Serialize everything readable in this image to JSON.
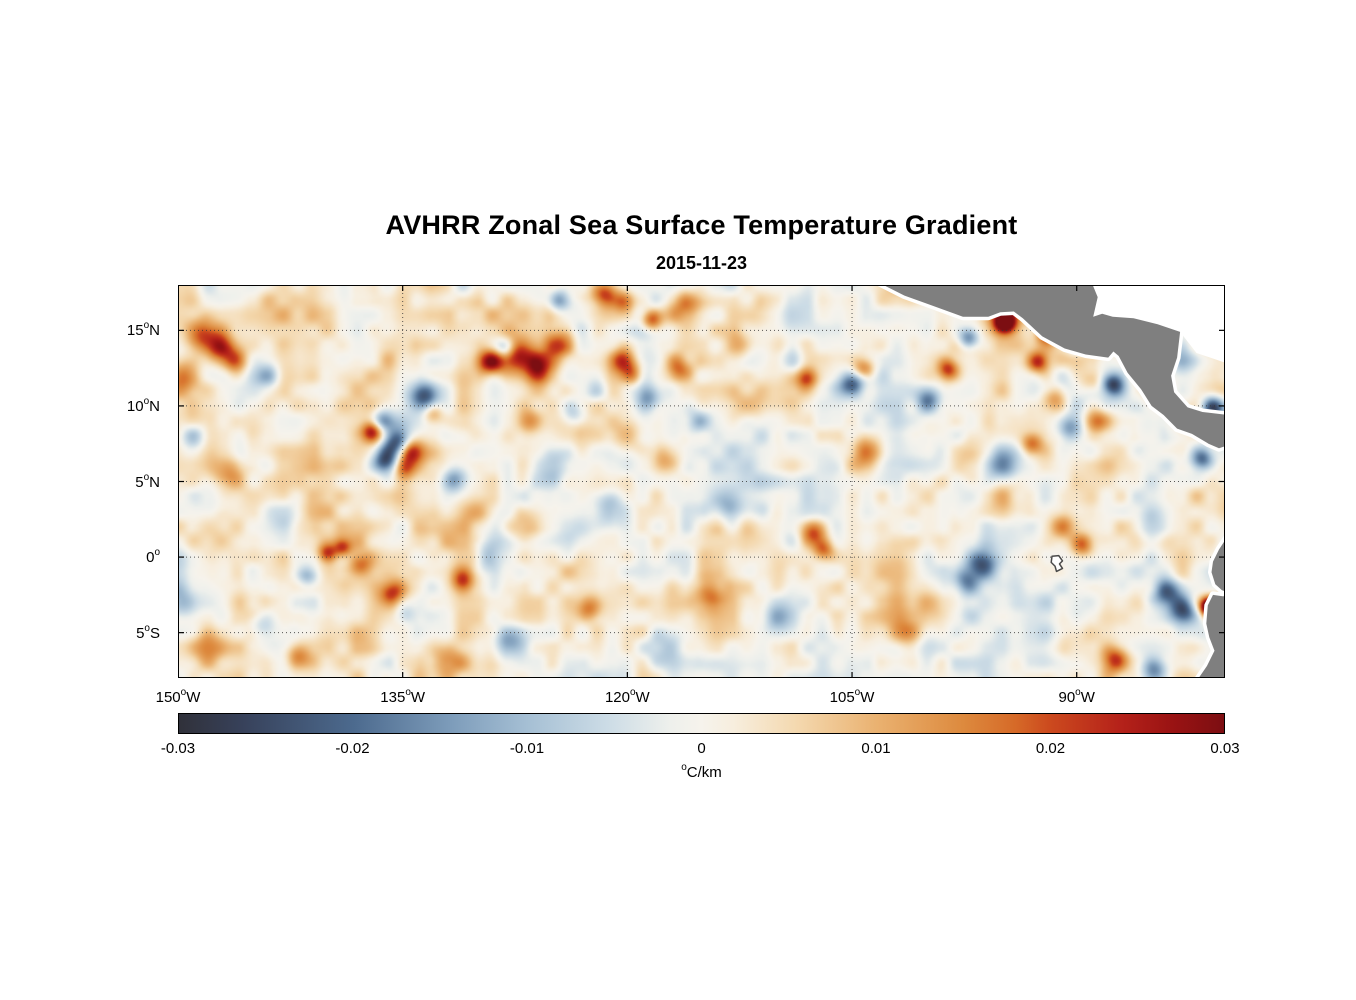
{
  "chart_data": {
    "type": "heatmap",
    "title": "AVHRR Zonal Sea Surface Temperature Gradient",
    "subtitle": "2015-11-23",
    "degree_symbol": "o",
    "x_axis": {
      "range": [
        -150,
        -80.1
      ],
      "ticks": [
        {
          "num": "150",
          "suffix": "W",
          "lon": -150
        },
        {
          "num": "135",
          "suffix": "W",
          "lon": -135
        },
        {
          "num": "120",
          "suffix": "W",
          "lon": -120
        },
        {
          "num": "105",
          "suffix": "W",
          "lon": -105
        },
        {
          "num": "90",
          "suffix": "W",
          "lon": -90
        }
      ]
    },
    "y_axis": {
      "range": [
        -8,
        18
      ],
      "ticks": [
        {
          "num": "15",
          "suffix": "N",
          "lat": 15
        },
        {
          "num": "10",
          "suffix": "N",
          "lat": 10
        },
        {
          "num": "5",
          "suffix": "N",
          "lat": 5
        },
        {
          "num": "0",
          "suffix": "",
          "lat": 0
        },
        {
          "num": "5",
          "suffix": "S",
          "lat": -5
        }
      ]
    },
    "grid": {
      "style": "dotted",
      "color": "#3a3a3a",
      "x_values": [
        -135,
        -120,
        -105,
        -90
      ],
      "y_values": [
        15,
        10,
        5,
        0,
        -5
      ]
    },
    "colorbar": {
      "range": [
        -0.03,
        0.03
      ],
      "unit_sup": "o",
      "unit": "C/km",
      "tick_labels": [
        "-0.03",
        "-0.02",
        "-0.01",
        "0",
        "0.01",
        "0.02",
        "0.03"
      ],
      "tick_values": [
        -0.03,
        -0.02,
        -0.01,
        0,
        0.01,
        0.02,
        0.03
      ]
    },
    "colormap": {
      "stops": [
        [
          0.0,
          "#30313a"
        ],
        [
          0.06,
          "#37415a"
        ],
        [
          0.167,
          "#4c6a8e"
        ],
        [
          0.26,
          "#7d9cba"
        ],
        [
          0.333,
          "#a5bfd4"
        ],
        [
          0.41,
          "#ccdce6"
        ],
        [
          0.47,
          "#eef0ec"
        ],
        [
          0.5,
          "#f6f3ec"
        ],
        [
          0.53,
          "#f7eede"
        ],
        [
          0.59,
          "#f4d9b0"
        ],
        [
          0.667,
          "#eab271"
        ],
        [
          0.75,
          "#dd8a3e"
        ],
        [
          0.8,
          "#d66a28"
        ],
        [
          0.833,
          "#cc4a1e"
        ],
        [
          0.9,
          "#b5221a"
        ],
        [
          0.95,
          "#9a1313"
        ],
        [
          1.0,
          "#7c0e12"
        ]
      ]
    },
    "field": {
      "bias": 0.001,
      "noise": {
        "seed": 7,
        "octaves": [
          {
            "wavelength_deg": 6.0,
            "amp": 0.0035
          },
          {
            "wavelength_deg": 2.4,
            "amp": 0.006
          },
          {
            "wavelength_deg": 1.0,
            "amp": 0.0038
          }
        ]
      },
      "blob_format": "[lon, lat, amplitude_C_per_km, sigma_deg]",
      "blobs": [
        [
          -148.3,
          14.6,
          0.02,
          0.8
        ],
        [
          -147.2,
          13.8,
          0.022,
          0.7
        ],
        [
          -146.2,
          13.0,
          0.018,
          0.6
        ],
        [
          -144.0,
          12.0,
          -0.012,
          0.6
        ],
        [
          -149.0,
          8.0,
          -0.012,
          0.7
        ],
        [
          -146.5,
          5.5,
          0.012,
          0.8
        ],
        [
          -143.0,
          3.0,
          -0.01,
          0.7
        ],
        [
          -140.0,
          0.3,
          0.018,
          0.45
        ],
        [
          -139.0,
          0.6,
          0.015,
          0.4
        ],
        [
          -141.3,
          -1.2,
          -0.014,
          0.5
        ],
        [
          -137.8,
          -0.5,
          0.012,
          0.5
        ],
        [
          -135.8,
          -2.3,
          0.018,
          0.55
        ],
        [
          -134.9,
          -3.8,
          -0.012,
          0.5
        ],
        [
          -135.3,
          7.6,
          -0.026,
          0.65
        ],
        [
          -134.5,
          7.0,
          0.026,
          0.6
        ],
        [
          -136.2,
          6.4,
          -0.02,
          0.55
        ],
        [
          -134.9,
          5.9,
          0.02,
          0.5
        ],
        [
          -137.0,
          8.3,
          0.022,
          0.5
        ],
        [
          -136.3,
          9.0,
          -0.016,
          0.5
        ],
        [
          -133.6,
          10.6,
          -0.024,
          0.7
        ],
        [
          -133.0,
          9.6,
          0.014,
          0.5
        ],
        [
          -131.4,
          5.1,
          -0.016,
          0.6
        ],
        [
          -129.1,
          12.9,
          0.026,
          0.6
        ],
        [
          -128.2,
          13.8,
          -0.018,
          0.5
        ],
        [
          -127.3,
          13.4,
          0.022,
          0.8
        ],
        [
          -125.9,
          12.6,
          0.02,
          0.7
        ],
        [
          -124.6,
          14.0,
          0.016,
          0.7
        ],
        [
          -124.6,
          17.0,
          -0.016,
          0.5
        ],
        [
          -121.6,
          17.4,
          0.02,
          0.6
        ],
        [
          -120.2,
          16.9,
          0.016,
          0.5
        ],
        [
          -118.4,
          15.7,
          0.02,
          0.5
        ],
        [
          -120.3,
          13.0,
          0.022,
          0.6
        ],
        [
          -119.6,
          12.1,
          0.014,
          0.5
        ],
        [
          -121.2,
          3.2,
          -0.016,
          0.8
        ],
        [
          -122.6,
          -3.4,
          0.014,
          0.6
        ],
        [
          -127.9,
          -5.6,
          -0.012,
          0.7
        ],
        [
          -116.2,
          16.6,
          0.012,
          0.8
        ],
        [
          -112.0,
          10.0,
          0.01,
          0.8
        ],
        [
          -113.5,
          3.5,
          -0.01,
          0.8
        ],
        [
          -110.0,
          -4.0,
          -0.01,
          0.8
        ],
        [
          -107.6,
          1.6,
          0.02,
          0.6
        ],
        [
          -106.9,
          0.4,
          0.018,
          0.5
        ],
        [
          -105.0,
          11.5,
          -0.022,
          0.6
        ],
        [
          -104.2,
          12.5,
          0.016,
          0.5
        ],
        [
          -104.0,
          7.0,
          0.014,
          0.7
        ],
        [
          -99.9,
          10.4,
          -0.018,
          0.6
        ],
        [
          -98.6,
          12.4,
          0.02,
          0.5
        ],
        [
          -97.2,
          14.5,
          -0.02,
          0.5
        ],
        [
          -94.8,
          15.6,
          0.045,
          0.5
        ],
        [
          -92.6,
          12.9,
          0.022,
          0.5
        ],
        [
          -96.3,
          -0.5,
          -0.022,
          0.7
        ],
        [
          -97.5,
          -1.5,
          -0.014,
          0.6
        ],
        [
          -89.6,
          0.8,
          0.016,
          0.5
        ],
        [
          -91.0,
          2.0,
          0.012,
          0.6
        ],
        [
          -87.6,
          11.4,
          -0.022,
          0.5
        ],
        [
          -88.6,
          9.0,
          0.014,
          0.6
        ],
        [
          -85.0,
          2.0,
          -0.012,
          0.7
        ],
        [
          -84.0,
          -2.4,
          -0.022,
          0.7
        ],
        [
          -82.9,
          -3.6,
          -0.02,
          0.6
        ],
        [
          -81.1,
          -3.3,
          0.05,
          0.45
        ],
        [
          -87.4,
          -6.8,
          0.02,
          0.6
        ],
        [
          -84.8,
          -7.6,
          -0.016,
          0.6
        ],
        [
          -80.9,
          9.9,
          -0.026,
          0.5
        ],
        [
          -81.6,
          6.5,
          -0.018,
          0.5
        ],
        [
          -83.0,
          13.0,
          -0.014,
          0.5
        ],
        [
          -149.5,
          12.0,
          0.012,
          0.7
        ],
        [
          -149.8,
          -3.0,
          -0.012,
          0.7
        ],
        [
          -148.0,
          -6.0,
          0.012,
          0.8
        ],
        [
          -144.5,
          -4.5,
          -0.01,
          0.7
        ],
        [
          -142.0,
          -6.5,
          0.014,
          0.6
        ],
        [
          -132.0,
          -6.8,
          0.012,
          0.7
        ],
        [
          -118.0,
          -6.0,
          -0.01,
          0.8
        ],
        [
          -114.5,
          -2.5,
          0.012,
          0.7
        ],
        [
          -101.5,
          -5.0,
          0.012,
          0.8
        ],
        [
          -95.0,
          6.0,
          -0.012,
          0.8
        ],
        [
          -93.0,
          7.5,
          0.016,
          0.5
        ],
        [
          -90.5,
          8.5,
          -0.014,
          0.6
        ],
        [
          -91.5,
          10.5,
          0.014,
          0.6
        ],
        [
          -89.0,
          11.5,
          0.012,
          0.6
        ],
        [
          -90.0,
          14.0,
          -0.016,
          0.5
        ],
        [
          -92.0,
          14.8,
          0.018,
          0.5
        ],
        [
          -112.5,
          14.0,
          0.012,
          0.7
        ],
        [
          -109.0,
          13.0,
          -0.014,
          0.6
        ],
        [
          -108.0,
          11.8,
          0.016,
          0.5
        ],
        [
          -115.5,
          9.0,
          -0.01,
          0.7
        ],
        [
          -117.5,
          6.5,
          0.012,
          0.7
        ],
        [
          -125.0,
          6.0,
          -0.012,
          0.7
        ],
        [
          -127.0,
          2.0,
          0.012,
          0.7
        ],
        [
          -129.5,
          0.0,
          -0.012,
          0.6
        ],
        [
          -131.0,
          -1.5,
          0.014,
          0.5
        ],
        [
          -130.0,
          3.0,
          0.01,
          0.6
        ],
        [
          -123.5,
          9.5,
          -0.012,
          0.6
        ],
        [
          -126.5,
          9.0,
          0.012,
          0.6
        ],
        [
          -122.0,
          11.0,
          -0.01,
          0.6
        ],
        [
          -120.0,
          8.0,
          0.01,
          0.7
        ],
        [
          -118.5,
          10.5,
          -0.012,
          0.6
        ],
        [
          -116.5,
          12.5,
          0.014,
          0.6
        ]
      ]
    },
    "land": {
      "color": "#7f7f7f",
      "coast_gap_color": "#ffffff",
      "no_data_color": "#ffffff",
      "central_america": [
        [
          -103.7,
          18.4
        ],
        [
          -101.5,
          17.3
        ],
        [
          -99.8,
          16.7
        ],
        [
          -97.6,
          15.9
        ],
        [
          -95.9,
          15.9
        ],
        [
          -95.1,
          16.2
        ],
        [
          -94.2,
          16.25
        ],
        [
          -93.6,
          15.8
        ],
        [
          -92.3,
          14.6
        ],
        [
          -90.8,
          13.8
        ],
        [
          -89.4,
          13.4
        ],
        [
          -87.9,
          13.2
        ],
        [
          -87.55,
          13.6
        ],
        [
          -87.2,
          13.3
        ],
        [
          -86.6,
          12.2
        ],
        [
          -85.7,
          11.1
        ],
        [
          -85.0,
          10.0
        ],
        [
          -84.2,
          9.4
        ],
        [
          -83.3,
          8.5
        ],
        [
          -82.3,
          8.15
        ],
        [
          -81.2,
          7.5
        ],
        [
          -80.5,
          7.2
        ],
        [
          -79.9,
          7.4
        ],
        [
          -79.9,
          9.4
        ],
        [
          -81.6,
          9.6
        ],
        [
          -82.6,
          9.9
        ],
        [
          -83.5,
          10.9
        ],
        [
          -83.7,
          12.0
        ],
        [
          -83.3,
          13.2
        ],
        [
          -83.1,
          14.9
        ],
        [
          -84.6,
          15.4
        ],
        [
          -86.2,
          15.8
        ],
        [
          -87.6,
          15.9
        ],
        [
          -88.3,
          16.1
        ],
        [
          -88.9,
          15.9
        ],
        [
          -88.6,
          17.2
        ],
        [
          -89.1,
          18.4
        ]
      ],
      "caribbean_no_data": [
        [
          -89.1,
          18.4
        ],
        [
          -88.6,
          17.2
        ],
        [
          -88.9,
          15.9
        ],
        [
          -88.3,
          16.1
        ],
        [
          -87.6,
          15.9
        ],
        [
          -86.2,
          15.8
        ],
        [
          -84.6,
          15.4
        ],
        [
          -83.1,
          14.9
        ],
        [
          -82.0,
          13.5
        ],
        [
          -79.9,
          12.8
        ],
        [
          -79.9,
          18.4
        ]
      ],
      "south_america": [
        [
          -79.9,
          1.4
        ],
        [
          -80.5,
          0.5
        ],
        [
          -80.9,
          -0.3
        ],
        [
          -81.0,
          -1.0
        ],
        [
          -80.75,
          -1.8
        ],
        [
          -80.3,
          -2.2
        ],
        [
          -80.0,
          -2.3
        ],
        [
          -80.2,
          -2.6
        ],
        [
          -80.9,
          -2.5
        ],
        [
          -81.25,
          -3.2
        ],
        [
          -81.35,
          -4.4
        ],
        [
          -81.15,
          -5.3
        ],
        [
          -80.8,
          -6.2
        ],
        [
          -81.3,
          -7.2
        ],
        [
          -82.2,
          -8.5
        ],
        [
          -79.9,
          -8.5
        ]
      ],
      "galapagos": [
        [
          -91.65,
          0.05
        ],
        [
          -91.2,
          0.1
        ],
        [
          -90.95,
          -0.25
        ],
        [
          -91.15,
          -0.45
        ],
        [
          -90.95,
          -0.75
        ],
        [
          -91.35,
          -0.95
        ],
        [
          -91.45,
          -0.6
        ],
        [
          -91.7,
          -0.35
        ]
      ]
    }
  }
}
